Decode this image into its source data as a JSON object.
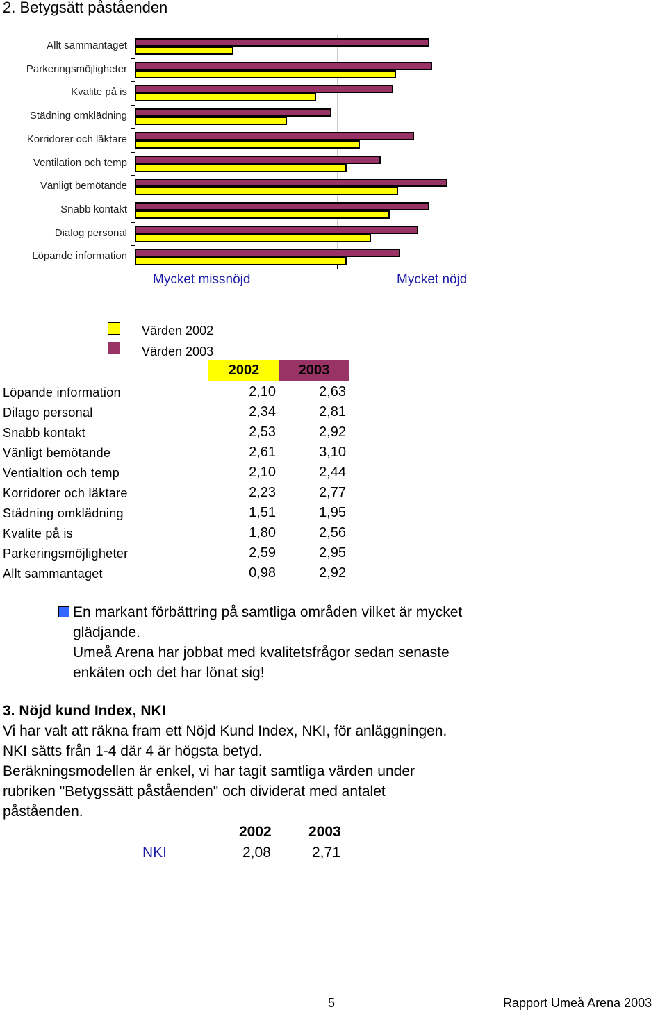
{
  "page_heading": "2. Betygsätt påståenden",
  "chart_data": {
    "type": "bar",
    "orientation": "horizontal",
    "categories": [
      "Allt sammantaget",
      "Parkeringsmöjligheter",
      "Kvalite på is",
      "Städning omklädning",
      "Korridorer och läktare",
      "Ventilation och temp",
      "Vänligt bemötande",
      "Snabb kontakt",
      "Dialog personal",
      "Löpande information"
    ],
    "series": [
      {
        "name": "Värden 2002",
        "color": "#ffff00",
        "values": [
          0.98,
          2.59,
          1.8,
          1.51,
          2.23,
          2.1,
          2.61,
          2.53,
          2.34,
          2.1
        ]
      },
      {
        "name": "Värden 2003",
        "color": "#993366",
        "values": [
          2.92,
          2.95,
          2.56,
          1.95,
          2.77,
          2.44,
          3.1,
          2.92,
          2.81,
          2.63
        ]
      }
    ],
    "xlim": [
      0,
      3.1
    ],
    "axis_left_label": "Mycket missnöjd",
    "axis_right_label": "Mycket nöjd",
    "grid": true
  },
  "legend": {
    "items": [
      {
        "label": "Värden 2002",
        "color": "#ffff00"
      },
      {
        "label": "Värden 2003",
        "color": "#993366"
      }
    ]
  },
  "table": {
    "headers": [
      "2002",
      "2003"
    ],
    "header_colors": [
      "#ffff00",
      "#993366"
    ],
    "rows": [
      {
        "label": "Löpande information",
        "v2002": "2,10",
        "v2003": "2,63"
      },
      {
        "label": "Dilago personal",
        "v2002": "2,34",
        "v2003": "2,81"
      },
      {
        "label": "Snabb kontakt",
        "v2002": "2,53",
        "v2003": "2,92"
      },
      {
        "label": "Vänligt bemötande",
        "v2002": "2,61",
        "v2003": "3,10"
      },
      {
        "label": "Ventialtion och temp",
        "v2002": "2,10",
        "v2003": "2,44"
      },
      {
        "label": "Korridorer och läktare",
        "v2002": "2,23",
        "v2003": "2,77"
      },
      {
        "label": "Städning omklädning",
        "v2002": "1,51",
        "v2003": "1,95"
      },
      {
        "label": "Kvalite på is",
        "v2002": "1,80",
        "v2003": "2,56"
      },
      {
        "label": "Parkeringsmöjligheter",
        "v2002": "2,59",
        "v2003": "2,95"
      },
      {
        "label": "Allt sammantaget",
        "v2002": "0,98",
        "v2003": "2,92"
      }
    ]
  },
  "summary": {
    "bullet_color": "#3366ff",
    "lines": [
      "En markant förbättring på samtliga områden vilket är mycket",
      "glädjande.",
      "Umeå Arena har jobbat med kvalitetsfrågor sedan senaste",
      "enkäten och det har lönat sig!"
    ]
  },
  "section3": {
    "title": "3. Nöjd kund Index, NKI",
    "lines": [
      "Vi har valt att räkna fram ett Nöjd Kund Index, NKI, för anläggningen.",
      "NKI sätts från 1-4 där 4 är högsta betyd.",
      "Beräkningsmodellen är enkel, vi har tagit samtliga värden under",
      "rubriken \"Betygssätt påståenden\" och dividerat med antalet",
      "påståenden."
    ],
    "nki_headers": [
      "2002",
      "2003"
    ],
    "nki_label": "NKI",
    "nki_label_color": "#1a1aa6",
    "nki_values": [
      "2,08",
      "2,71"
    ]
  },
  "footer": {
    "page_number": "5",
    "report_title": "Rapport Umeå Arena 2003"
  }
}
